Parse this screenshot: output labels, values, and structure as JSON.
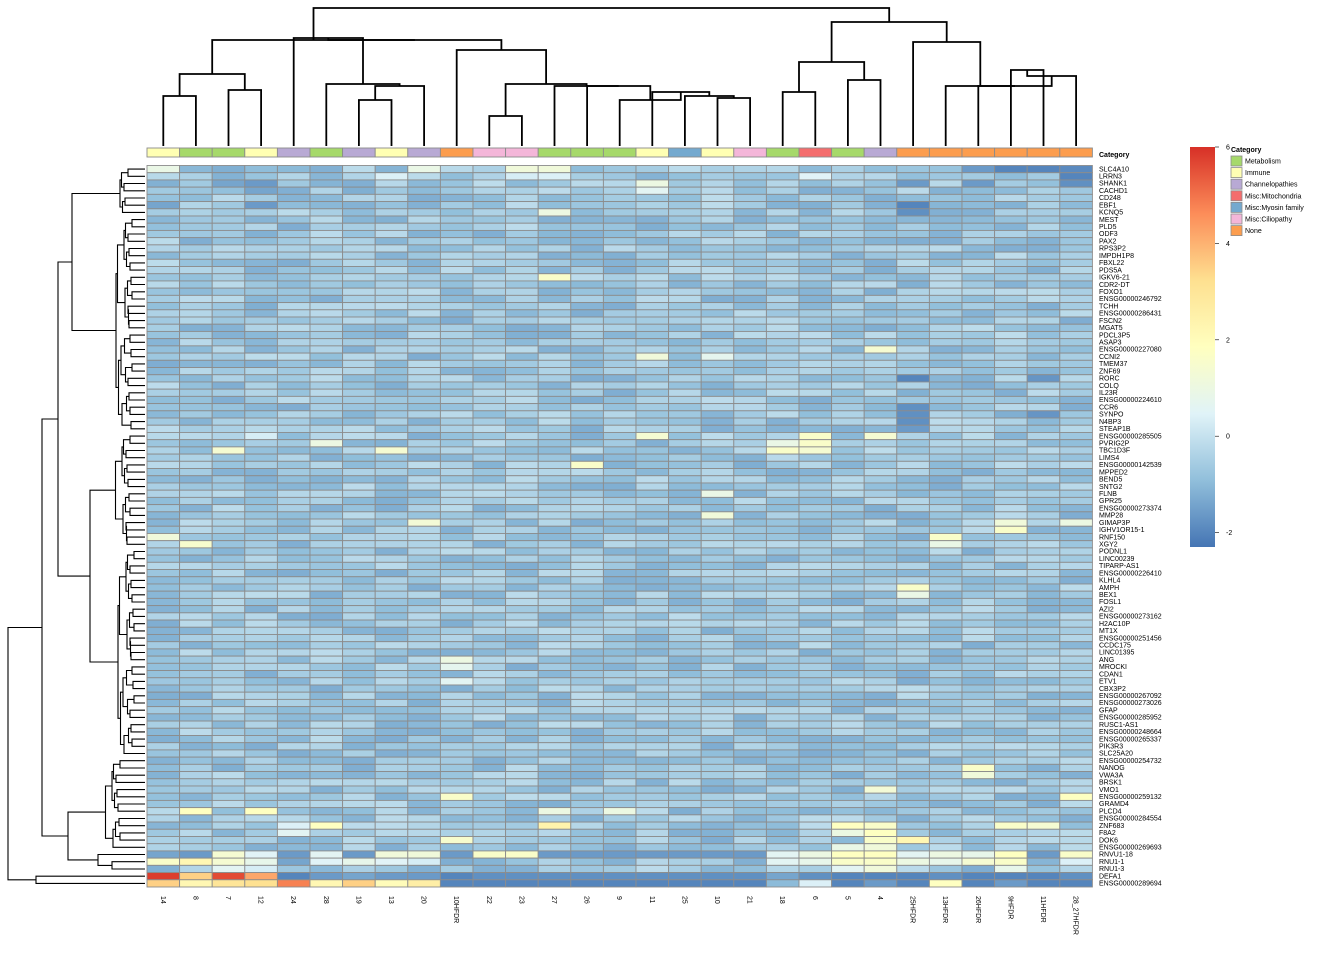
{
  "chart_data": {
    "type": "heatmap",
    "title": "",
    "annotation_title": "Category",
    "columns": [
      "14",
      "8",
      "7",
      "12",
      "24",
      "28",
      "19",
      "13",
      "20",
      "10HFDR",
      "22",
      "23",
      "27",
      "26",
      "9",
      "11",
      "25",
      "10",
      "21",
      "18",
      "6",
      "5",
      "4",
      "25HFDR",
      "13HFDR",
      "26HFDR",
      "9HFDR",
      "11HFDR",
      "28_27HFDR"
    ],
    "column_categories": [
      "Immune",
      "Metabolism",
      "Metabolism",
      "Immune",
      "Channelopathies",
      "Metabolism",
      "Channelopathies",
      "Immune",
      "Channelopathies",
      "None",
      "Misc:Ciliopathy",
      "Misc:Ciliopathy",
      "Metabolism",
      "Metabolism",
      "Metabolism",
      "Immune",
      "Misc:Myosin family",
      "Immune",
      "Misc:Ciliopathy",
      "Metabolism",
      "Misc:Mitochondria",
      "Metabolism",
      "Channelopathies",
      "None",
      "None",
      "None",
      "None",
      "None",
      "None"
    ],
    "row_labels": [
      "SLC4A10",
      "LRRN3",
      "SHANK1",
      "CACHD1",
      "CD248",
      "EBF1",
      "KCNQ5",
      "MEST",
      "PLD5",
      "ODF3",
      "PAX2",
      "RPS3P2",
      "IMPDH1P8",
      "FBXL22",
      "PDS5A",
      "IGKV6-21",
      "CDR2-DT",
      "FOXO1",
      "ENSG00000246792",
      "TCHH",
      "ENSG00000286431",
      "FSCN2",
      "MGAT5",
      "PDCL3P5",
      "ASAP3",
      "ENSG00000227080",
      "CCNI2",
      "TMEM37",
      "ZNF69",
      "RORC",
      "COLQ",
      "IL23R",
      "ENSG00000224610",
      "CCR6",
      "SYNPO",
      "N4BP3",
      "STEAP1B",
      "ENSG00000285505",
      "PVRIG2P",
      "TBC1D3F",
      "LIMS4",
      "ENSG00000142539",
      "MPPED2",
      "BEND5",
      "SNTG2",
      "FLNB",
      "GPR25",
      "ENSG00000273374",
      "MMP28",
      "GIMAP3P",
      "IGHV1OR15-1",
      "RNF150",
      "XGY2",
      "PODNL1",
      "LINC00239",
      "TIPARP-AS1",
      "ENSG00000226410",
      "KLHL4",
      "AMPH",
      "BEX1",
      "FOSL1",
      "AZI2",
      "ENSG00000273162",
      "H2AC10P",
      "MT1X",
      "ENSG00000251456",
      "CCDC175",
      "LINC01395",
      "ANG",
      "MROCKI",
      "CDAN1",
      "ETV1",
      "CBX3P2",
      "ENSG00000267092",
      "ENSG00000273026",
      "GFAP",
      "ENSG00000285952",
      "RUSC1-AS1",
      "ENSG00000248664",
      "ENSG00000265337",
      "PIK3R3",
      "SLC25A20",
      "ENSG00000254732",
      "NANOG",
      "VWA3A",
      "BRSK1",
      "VMO1",
      "ENSG00000259132",
      "GRAMD4",
      "PLCD4",
      "ENSG00000284554",
      "ZNF683",
      "F8A2",
      "DOK6",
      "ENSG00000269693",
      "RNVU1-18",
      "RNU1-1",
      "RNU1-3",
      "DEFA1",
      "ENSG00000289694"
    ],
    "visible_row_labels": [
      "SLC4A10",
      "LRRN3",
      "SHANK1",
      "CACHD1",
      "CD248",
      "EBF1",
      "KCNQ5",
      "MEST",
      "PLD5",
      "ODF3",
      "PAX2",
      "RPS3P2",
      "IMPDH1P8",
      "FBXL22",
      "PDS5A",
      "IGKV6-21",
      "CDR2-DT",
      "FOXO1",
      "ENSG00000246792",
      "TCHH",
      "ENSG00000286431",
      "FSCN2",
      "MGAT5",
      "PDCL3P5",
      "ASAP3",
      "ENSG00000227080",
      "CCNI2",
      "TMEM37",
      "ZNF69",
      "RORC",
      "COLQ",
      "IL23R",
      "ENSG00000224610",
      "CCR6",
      "SYNPO",
      "N4BP3",
      "STEAP1B",
      "ENSG00000285505",
      "PVRIG2P",
      "TBC1D3F",
      "LIMS4",
      "ENSG00000142539",
      "MPPED2",
      "BEND5",
      "SNTG2",
      "FLNB",
      "GPR25",
      "ENSG00000273374",
      "MMP28",
      "GIMAP3P",
      "IGHV1OR15-1",
      "RNF150",
      "XGY2",
      "PODNL1",
      "LINC00239",
      "TIPARP-AS1",
      "ENSG00000226410",
      "KLHL4",
      "AMPH",
      "BEX1",
      "FOSL1",
      "AZI2",
      "ENSG00000273162",
      "H2AC10P",
      "MT1X",
      "ENSG00000251456",
      "CCDC175",
      "LINC01395",
      "ANG",
      "MROCKI",
      "CDAN1",
      "ETV1",
      "CBX3P2",
      "ENSG00000267092",
      "ENSG00000273026",
      "GFAP",
      "ENSG00000285952",
      "RUSC1-AS1",
      "ENSG00000248664",
      "ENSG00000265337",
      "PIK3R3",
      "SLC25A20",
      "ENSG00000254732",
      "NANOG",
      "VWA3A",
      "BRSK1",
      "VMO1",
      "ENSG00000259132",
      "GRAMD4",
      "PLCD4",
      "ENSG00000284554",
      "ZNF683",
      "F8A2",
      "DOK6",
      "ENSG00000269693",
      "RNVU1-18",
      "RNU1-1",
      "RNU1-3",
      "DEFA1",
      "ENSG00000289694"
    ],
    "colorbar": {
      "min": -2.3,
      "max": 6,
      "ticks": [
        -2,
        0,
        2,
        4,
        6
      ]
    },
    "color_stops": [
      "#4575b4",
      "#91bfdb",
      "#e0f3f8",
      "#ffffbf",
      "#fee090",
      "#fc8d59",
      "#d73027"
    ],
    "legend": [
      {
        "label": "Metabolism",
        "color": "#a6d96a"
      },
      {
        "label": "Immune",
        "color": "#ffffb3"
      },
      {
        "label": "Channelopathies",
        "color": "#b8a9d4"
      },
      {
        "label": "Misc:Mitochondria",
        "color": "#f46d6d"
      },
      {
        "label": "Misc:Myosin family",
        "color": "#74a9cf"
      },
      {
        "label": "Misc:Ciliopathy",
        "color": "#f4b6d9"
      },
      {
        "label": "None",
        "color": "#fc9d4e"
      }
    ],
    "baseline_value": -0.7,
    "cell_overrides": [
      {
        "r": 0,
        "c": 0,
        "v": 0.9
      },
      {
        "r": 0,
        "c": 8,
        "v": 0.9
      },
      {
        "r": 0,
        "c": 11,
        "v": 1.2
      },
      {
        "r": 0,
        "c": 12,
        "v": 1.2
      },
      {
        "r": 0,
        "c": 25,
        "v": -1.6
      },
      {
        "r": 0,
        "c": 26,
        "v": -2.0
      },
      {
        "r": 0,
        "c": 27,
        "v": -2.0
      },
      {
        "r": 0,
        "c": 28,
        "v": -1.9
      },
      {
        "r": 1,
        "c": 7,
        "v": 0.4
      },
      {
        "r": 1,
        "c": 11,
        "v": 0.3
      },
      {
        "r": 1,
        "c": 12,
        "v": 0.4
      },
      {
        "r": 1,
        "c": 20,
        "v": 0.5
      },
      {
        "r": 1,
        "c": 28,
        "v": -2.0
      },
      {
        "r": 2,
        "c": 3,
        "v": -1.6
      },
      {
        "r": 2,
        "c": 2,
        "v": -1.4
      },
      {
        "r": 2,
        "c": 15,
        "v": 1.0
      },
      {
        "r": 2,
        "c": 23,
        "v": -1.6
      },
      {
        "r": 2,
        "c": 25,
        "v": -1.6
      },
      {
        "r": 2,
        "c": 28,
        "v": -1.8
      },
      {
        "r": 3,
        "c": 3,
        "v": -1.4
      },
      {
        "r": 3,
        "c": 15,
        "v": 0.6
      },
      {
        "r": 5,
        "c": 0,
        "v": -1.4
      },
      {
        "r": 5,
        "c": 3,
        "v": -1.6
      },
      {
        "r": 5,
        "c": 23,
        "v": -2.0
      },
      {
        "r": 6,
        "c": 23,
        "v": -1.8
      },
      {
        "r": 6,
        "c": 12,
        "v": 1.0
      },
      {
        "r": 15,
        "c": 12,
        "v": 1.6
      },
      {
        "r": 25,
        "c": 22,
        "v": 1.4
      },
      {
        "r": 26,
        "c": 15,
        "v": 1.2
      },
      {
        "r": 26,
        "c": 17,
        "v": 0.7
      },
      {
        "r": 29,
        "c": 23,
        "v": -2.0
      },
      {
        "r": 29,
        "c": 27,
        "v": -1.7
      },
      {
        "r": 33,
        "c": 23,
        "v": -1.8
      },
      {
        "r": 34,
        "c": 23,
        "v": -1.8
      },
      {
        "r": 34,
        "c": 27,
        "v": -1.7
      },
      {
        "r": 35,
        "c": 23,
        "v": -1.8
      },
      {
        "r": 36,
        "c": 23,
        "v": -1.6
      },
      {
        "r": 37,
        "c": 3,
        "v": 0.3
      },
      {
        "r": 37,
        "c": 15,
        "v": 1.4
      },
      {
        "r": 37,
        "c": 20,
        "v": 1.6
      },
      {
        "r": 37,
        "c": 22,
        "v": 1.4
      },
      {
        "r": 38,
        "c": 5,
        "v": 1.0
      },
      {
        "r": 38,
        "c": 19,
        "v": 0.9
      },
      {
        "r": 38,
        "c": 20,
        "v": 1.6
      },
      {
        "r": 39,
        "c": 2,
        "v": 1.4
      },
      {
        "r": 39,
        "c": 7,
        "v": 1.4
      },
      {
        "r": 39,
        "c": 19,
        "v": 1.6
      },
      {
        "r": 39,
        "c": 20,
        "v": 1.4
      },
      {
        "r": 41,
        "c": 13,
        "v": 1.6
      },
      {
        "r": 45,
        "c": 17,
        "v": 0.9
      },
      {
        "r": 48,
        "c": 17,
        "v": 1.2
      },
      {
        "r": 49,
        "c": 8,
        "v": 1.3
      },
      {
        "r": 49,
        "c": 26,
        "v": 1.2
      },
      {
        "r": 49,
        "c": 28,
        "v": 1.0
      },
      {
        "r": 50,
        "c": 26,
        "v": 1.6
      },
      {
        "r": 51,
        "c": 0,
        "v": 1.2
      },
      {
        "r": 51,
        "c": 24,
        "v": 1.6
      },
      {
        "r": 52,
        "c": 1,
        "v": 1.5
      },
      {
        "r": 52,
        "c": 24,
        "v": 0.9
      },
      {
        "r": 58,
        "c": 23,
        "v": 1.6
      },
      {
        "r": 59,
        "c": 23,
        "v": 0.9
      },
      {
        "r": 68,
        "c": 9,
        "v": 1.0
      },
      {
        "r": 69,
        "c": 9,
        "v": 0.7
      },
      {
        "r": 71,
        "c": 9,
        "v": 0.6
      },
      {
        "r": 83,
        "c": 25,
        "v": 1.6
      },
      {
        "r": 84,
        "c": 25,
        "v": 1.2
      },
      {
        "r": 86,
        "c": 22,
        "v": 1.3
      },
      {
        "r": 87,
        "c": 9,
        "v": 1.6
      },
      {
        "r": 87,
        "c": 28,
        "v": 1.8
      },
      {
        "r": 89,
        "c": 1,
        "v": 1.8
      },
      {
        "r": 89,
        "c": 3,
        "v": 1.8
      },
      {
        "r": 89,
        "c": 12,
        "v": 1.0
      },
      {
        "r": 89,
        "c": 14,
        "v": 1.0
      },
      {
        "r": 91,
        "c": 4,
        "v": 0.4
      },
      {
        "r": 91,
        "c": 5,
        "v": 1.8
      },
      {
        "r": 91,
        "c": 12,
        "v": 2.4
      },
      {
        "r": 91,
        "c": 21,
        "v": 1.8
      },
      {
        "r": 91,
        "c": 22,
        "v": 1.6
      },
      {
        "r": 91,
        "c": 26,
        "v": 1.6
      },
      {
        "r": 91,
        "c": 27,
        "v": 1.4
      },
      {
        "r": 92,
        "c": 4,
        "v": 0.6
      },
      {
        "r": 92,
        "c": 21,
        "v": 1.0
      },
      {
        "r": 92,
        "c": 22,
        "v": 1.8
      },
      {
        "r": 93,
        "c": 9,
        "v": 1.5
      },
      {
        "r": 93,
        "c": 22,
        "v": 1.6
      },
      {
        "r": 93,
        "c": 23,
        "v": 2.2
      },
      {
        "r": 94,
        "c": 21,
        "v": 0.9
      },
      {
        "r": 94,
        "c": 22,
        "v": 1.2
      },
      {
        "r": 95,
        "c": 0,
        "v": -1.4
      },
      {
        "r": 95,
        "c": 1,
        "v": -1.6
      },
      {
        "r": 95,
        "c": 2,
        "v": 1.4
      },
      {
        "r": 95,
        "c": 3,
        "v": 0.5
      },
      {
        "r": 95,
        "c": 4,
        "v": -1.6
      },
      {
        "r": 95,
        "c": 5,
        "v": 0.6
      },
      {
        "r": 95,
        "c": 6,
        "v": -1.6
      },
      {
        "r": 95,
        "c": 7,
        "v": 1.2
      },
      {
        "r": 95,
        "c": 8,
        "v": 1.2
      },
      {
        "r": 95,
        "c": 9,
        "v": -1.6
      },
      {
        "r": 95,
        "c": 10,
        "v": 1.6
      },
      {
        "r": 95,
        "c": 11,
        "v": 1.6
      },
      {
        "r": 95,
        "c": 12,
        "v": -1.6
      },
      {
        "r": 95,
        "c": 13,
        "v": -1.6
      },
      {
        "r": 95,
        "c": 14,
        "v": -1.6
      },
      {
        "r": 95,
        "c": 15,
        "v": -1.6
      },
      {
        "r": 95,
        "c": 16,
        "v": -1.6
      },
      {
        "r": 95,
        "c": 17,
        "v": -1.6
      },
      {
        "r": 95,
        "c": 18,
        "v": -1.6
      },
      {
        "r": 95,
        "c": 19,
        "v": 0.6
      },
      {
        "r": 95,
        "c": 20,
        "v": 1.0
      },
      {
        "r": 95,
        "c": 21,
        "v": 1.8
      },
      {
        "r": 95,
        "c": 22,
        "v": 1.8
      },
      {
        "r": 95,
        "c": 23,
        "v": 0.6
      },
      {
        "r": 95,
        "c": 24,
        "v": 1.0
      },
      {
        "r": 95,
        "c": 25,
        "v": 0.8
      },
      {
        "r": 95,
        "c": 26,
        "v": 1.8
      },
      {
        "r": 95,
        "c": 27,
        "v": -1.6
      },
      {
        "r": 95,
        "c": 28,
        "v": 1.6
      },
      {
        "r": 96,
        "c": 0,
        "v": 1.6
      },
      {
        "r": 96,
        "c": 1,
        "v": 2.2
      },
      {
        "r": 96,
        "c": 2,
        "v": 1.4
      },
      {
        "r": 96,
        "c": 3,
        "v": 0.8
      },
      {
        "r": 96,
        "c": 4,
        "v": -1.4
      },
      {
        "r": 96,
        "c": 5,
        "v": 0.5
      },
      {
        "r": 96,
        "c": 6,
        "v": 0.8
      },
      {
        "r": 96,
        "c": 7,
        "v": 0.5
      },
      {
        "r": 96,
        "c": 8,
        "v": 0.3
      },
      {
        "r": 96,
        "c": 19,
        "v": 0.6
      },
      {
        "r": 96,
        "c": 20,
        "v": 0.8
      },
      {
        "r": 96,
        "c": 21,
        "v": 1.6
      },
      {
        "r": 96,
        "c": 22,
        "v": 1.6
      },
      {
        "r": 96,
        "c": 23,
        "v": 1.0
      },
      {
        "r": 96,
        "c": 24,
        "v": 0.8
      },
      {
        "r": 96,
        "c": 25,
        "v": 1.4
      },
      {
        "r": 96,
        "c": 26,
        "v": 1.6
      },
      {
        "r": 96,
        "c": 28,
        "v": 0.4
      },
      {
        "r": 97,
        "c": 0,
        "v": -1.2
      },
      {
        "r": 97,
        "c": 2,
        "v": 0.6
      },
      {
        "r": 97,
        "c": 3,
        "v": 0.3
      },
      {
        "r": 97,
        "c": 21,
        "v": 0.6
      },
      {
        "r": 97,
        "c": 22,
        "v": 1.2
      },
      {
        "r": 97,
        "c": 23,
        "v": -0.2
      },
      {
        "r": 97,
        "c": 26,
        "v": 0.8
      },
      {
        "r": 98,
        "c": 0,
        "v": 5.8
      },
      {
        "r": 98,
        "c": 1,
        "v": 3.5
      },
      {
        "r": 98,
        "c": 2,
        "v": 5.6
      },
      {
        "r": 98,
        "c": 3,
        "v": 4.2
      },
      {
        "r": 98,
        "c": 4,
        "v": -2.0
      },
      {
        "r": 98,
        "c": 5,
        "v": -1.6
      },
      {
        "r": 98,
        "c": 6,
        "v": -1.4
      },
      {
        "r": 98,
        "c": 7,
        "v": -1.6
      },
      {
        "r": 98,
        "c": 8,
        "v": -1.6
      },
      {
        "r": 98,
        "c": 9,
        "v": -2.0
      },
      {
        "r": 98,
        "c": 10,
        "v": -1.8
      },
      {
        "r": 98,
        "c": 11,
        "v": -1.8
      },
      {
        "r": 98,
        "c": 12,
        "v": -1.8
      },
      {
        "r": 98,
        "c": 13,
        "v": -1.8
      },
      {
        "r": 98,
        "c": 14,
        "v": -1.8
      },
      {
        "r": 98,
        "c": 15,
        "v": -1.8
      },
      {
        "r": 98,
        "c": 16,
        "v": -1.8
      },
      {
        "r": 98,
        "c": 17,
        "v": -1.8
      },
      {
        "r": 98,
        "c": 18,
        "v": -1.8
      },
      {
        "r": 98,
        "c": 19,
        "v": -1.4
      },
      {
        "r": 98,
        "c": 20,
        "v": -1.8
      },
      {
        "r": 98,
        "c": 21,
        "v": -2.0
      },
      {
        "r": 98,
        "c": 22,
        "v": -2.0
      },
      {
        "r": 98,
        "c": 23,
        "v": -2.0
      },
      {
        "r": 98,
        "c": 24,
        "v": -1.8
      },
      {
        "r": 98,
        "c": 25,
        "v": -2.0
      },
      {
        "r": 98,
        "c": 26,
        "v": -2.0
      },
      {
        "r": 98,
        "c": 27,
        "v": -2.0
      },
      {
        "r": 98,
        "c": 28,
        "v": -1.8
      },
      {
        "r": 99,
        "c": 0,
        "v": 3.5
      },
      {
        "r": 99,
        "c": 1,
        "v": 2.2
      },
      {
        "r": 99,
        "c": 2,
        "v": 3.0
      },
      {
        "r": 99,
        "c": 3,
        "v": 3.2
      },
      {
        "r": 99,
        "c": 4,
        "v": 4.8
      },
      {
        "r": 99,
        "c": 5,
        "v": 2.2
      },
      {
        "r": 99,
        "c": 6,
        "v": 3.5
      },
      {
        "r": 99,
        "c": 7,
        "v": 2.0
      },
      {
        "r": 99,
        "c": 8,
        "v": 2.6
      },
      {
        "r": 99,
        "c": 9,
        "v": -2.0
      },
      {
        "r": 99,
        "c": 10,
        "v": -2.0
      },
      {
        "r": 99,
        "c": 11,
        "v": -2.0
      },
      {
        "r": 99,
        "c": 12,
        "v": -2.0
      },
      {
        "r": 99,
        "c": 13,
        "v": -2.0
      },
      {
        "r": 99,
        "c": 14,
        "v": -2.0
      },
      {
        "r": 99,
        "c": 15,
        "v": -2.0
      },
      {
        "r": 99,
        "c": 16,
        "v": -2.0
      },
      {
        "r": 99,
        "c": 17,
        "v": -2.0
      },
      {
        "r": 99,
        "c": 18,
        "v": -2.0
      },
      {
        "r": 99,
        "c": 19,
        "v": -1.0
      },
      {
        "r": 99,
        "c": 20,
        "v": 0.4
      },
      {
        "r": 99,
        "c": 21,
        "v": -2.0
      },
      {
        "r": 99,
        "c": 22,
        "v": -1.6
      },
      {
        "r": 99,
        "c": 23,
        "v": -2.0
      },
      {
        "r": 99,
        "c": 24,
        "v": 1.8
      },
      {
        "r": 99,
        "c": 25,
        "v": -2.0
      },
      {
        "r": 99,
        "c": 26,
        "v": -1.6
      },
      {
        "r": 99,
        "c": 27,
        "v": -2.0
      },
      {
        "r": 99,
        "c": 28,
        "v": -2.0
      }
    ]
  }
}
